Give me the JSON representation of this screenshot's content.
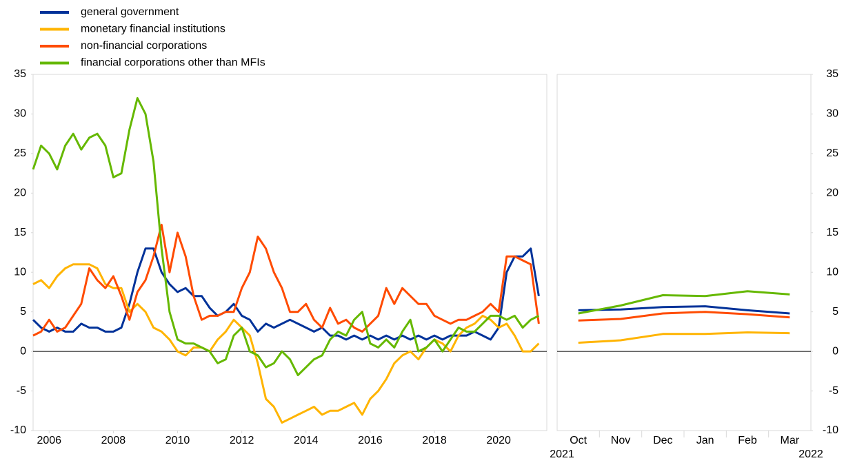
{
  "chart_data": [
    {
      "type": "line",
      "x": [
        2005.5,
        2005.75,
        2006,
        2006.25,
        2006.5,
        2006.75,
        2007,
        2007.25,
        2007.5,
        2007.75,
        2008,
        2008.25,
        2008.5,
        2008.75,
        2009,
        2009.25,
        2009.5,
        2009.75,
        2010,
        2010.25,
        2010.5,
        2010.75,
        2011,
        2011.25,
        2011.5,
        2011.75,
        2012,
        2012.25,
        2012.5,
        2012.75,
        2013,
        2013.25,
        2013.5,
        2013.75,
        2014,
        2014.25,
        2014.5,
        2014.75,
        2015,
        2015.25,
        2015.5,
        2015.75,
        2016,
        2016.25,
        2016.5,
        2016.75,
        2017,
        2017.25,
        2017.5,
        2017.75,
        2018,
        2018.25,
        2018.5,
        2018.75,
        2019,
        2019.25,
        2019.5,
        2019.75,
        2020,
        2020.25,
        2020.5,
        2020.75,
        2021,
        2021.25
      ],
      "xlim": [
        2005.5,
        2021.5
      ],
      "xticks": [
        2006,
        2008,
        2010,
        2012,
        2014,
        2016,
        2018,
        2020
      ],
      "ylim": [
        -10,
        35
      ],
      "yticks": [
        -10,
        -5,
        0,
        5,
        10,
        15,
        20,
        25,
        30,
        35
      ],
      "series": [
        {
          "name": "general government",
          "color": "#003299",
          "values": [
            4,
            3,
            2.5,
            3,
            2.5,
            2.5,
            3.5,
            3,
            3,
            2.5,
            2.5,
            3,
            6,
            10,
            13,
            13,
            10,
            8.5,
            7.5,
            8,
            7,
            7,
            5.5,
            4.5,
            5,
            6,
            4.5,
            4,
            2.5,
            3.5,
            3,
            3.5,
            4,
            3.5,
            3,
            2.5,
            3,
            2,
            2,
            1.5,
            2,
            1.5,
            2,
            1.5,
            2,
            1.5,
            2,
            1.5,
            2,
            1.5,
            2,
            1.5,
            2,
            2,
            2,
            2.5,
            2,
            1.5,
            3,
            10,
            12,
            12,
            13,
            7
          ]
        },
        {
          "name": "monetary financial institutions",
          "color": "#ffb400",
          "values": [
            8.5,
            9,
            8,
            9.5,
            10.5,
            11,
            11,
            11,
            10.5,
            8.5,
            8,
            8,
            5,
            6,
            5,
            3,
            2.5,
            1.5,
            0,
            -0.5,
            0.5,
            0.5,
            0,
            1.5,
            2.5,
            4,
            3,
            2,
            -1.5,
            -6,
            -7,
            -9,
            -8.5,
            -8,
            -7.5,
            -7,
            -8,
            -7.5,
            -7.5,
            -7,
            -6.5,
            -8,
            -6,
            -5,
            -3.5,
            -1.5,
            -0.5,
            0,
            -1,
            0.5,
            1.5,
            1,
            0,
            2,
            3,
            3.5,
            4.5,
            4,
            3,
            3.5,
            2,
            0,
            0,
            1
          ]
        },
        {
          "name": "non-financial corporations",
          "color": "#ff4b00",
          "values": [
            2,
            2.5,
            4,
            2.5,
            3,
            4.5,
            6,
            10.5,
            9,
            8,
            9.5,
            7,
            4,
            7.5,
            9,
            12,
            16,
            10,
            15,
            12,
            7,
            4,
            4.5,
            4.5,
            5,
            5,
            8,
            10,
            14.5,
            13,
            10,
            8,
            5,
            5,
            6,
            4,
            3,
            5.5,
            3.5,
            4,
            3,
            2.5,
            3.5,
            4.5,
            8,
            6,
            8,
            7,
            6,
            6,
            4.5,
            4,
            3.5,
            4,
            4,
            4.5,
            5,
            6,
            5,
            12,
            12,
            11.5,
            11,
            3.5
          ]
        },
        {
          "name": "financial corporations other than MFIs",
          "color": "#65b800",
          "values": [
            23,
            26,
            25,
            23,
            26,
            27.5,
            25.5,
            27,
            27.5,
            26,
            22,
            22.5,
            28,
            32,
            30,
            24,
            13,
            5,
            1.5,
            1,
            1,
            0.5,
            0,
            -1.5,
            -1,
            2,
            3,
            0,
            -0.5,
            -2,
            -1.5,
            0,
            -1,
            -3,
            -2,
            -1,
            -0.5,
            1.5,
            2.5,
            2,
            4,
            5,
            1,
            0.5,
            1.5,
            0.5,
            2.5,
            4,
            0,
            0.5,
            1.5,
            0,
            1.5,
            3,
            2.5,
            2.5,
            3.5,
            4.5,
            4.5,
            4,
            4.5,
            3,
            4,
            4.5
          ]
        }
      ]
    },
    {
      "type": "line",
      "categories": [
        "Oct",
        "Nov",
        "Dec",
        "Jan",
        "Feb",
        "Mar"
      ],
      "period_labels": [
        "2021",
        "2022"
      ],
      "ylim": [
        -10,
        35
      ],
      "yticks": [
        -10,
        -5,
        0,
        5,
        10,
        15,
        20,
        25,
        30,
        35
      ],
      "series": [
        {
          "color": "#003299",
          "values": [
            5.2,
            5.3,
            5.6,
            5.7,
            5.2,
            4.8
          ]
        },
        {
          "color": "#ffb400",
          "values": [
            1.1,
            1.4,
            2.2,
            2.2,
            2.4,
            2.3
          ]
        },
        {
          "color": "#ff4b00",
          "values": [
            3.9,
            4.1,
            4.8,
            5.0,
            4.7,
            4.3
          ]
        },
        {
          "color": "#65b800",
          "values": [
            4.8,
            5.8,
            7.1,
            7.0,
            7.6,
            7.2
          ]
        }
      ]
    }
  ]
}
